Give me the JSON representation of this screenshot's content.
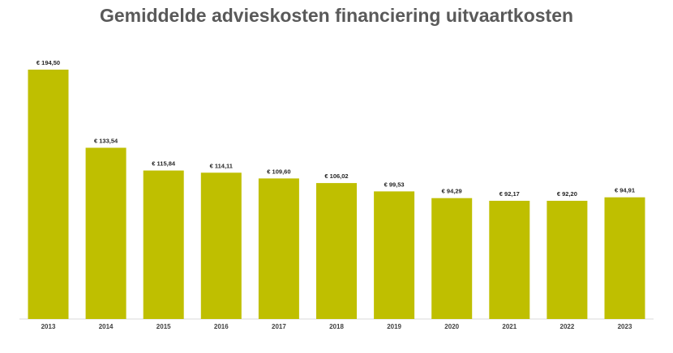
{
  "chart_data": {
    "type": "bar",
    "title": "Gemiddelde advieskosten financiering uitvaartkosten",
    "categories": [
      "2013",
      "2014",
      "2015",
      "2016",
      "2017",
      "2018",
      "2019",
      "2020",
      "2021",
      "2022",
      "2023"
    ],
    "values": [
      194.5,
      133.54,
      115.84,
      114.11,
      109.6,
      106.02,
      99.53,
      94.29,
      92.17,
      92.2,
      94.91
    ],
    "data_labels": [
      "€ 194,50",
      "€ 133,54",
      "€ 115,84",
      "€ 114,11",
      "€ 109,60",
      "€ 106,02",
      "€ 99,53",
      "€ 94,29",
      "€ 92,17",
      "€ 92,20",
      "€ 94,91"
    ],
    "xlabel": "",
    "ylabel": "",
    "ylim": [
      0,
      200
    ],
    "grid": false,
    "legend": "none",
    "bar_color": "#bfbf00",
    "axis_color": "#d9d9d9"
  }
}
